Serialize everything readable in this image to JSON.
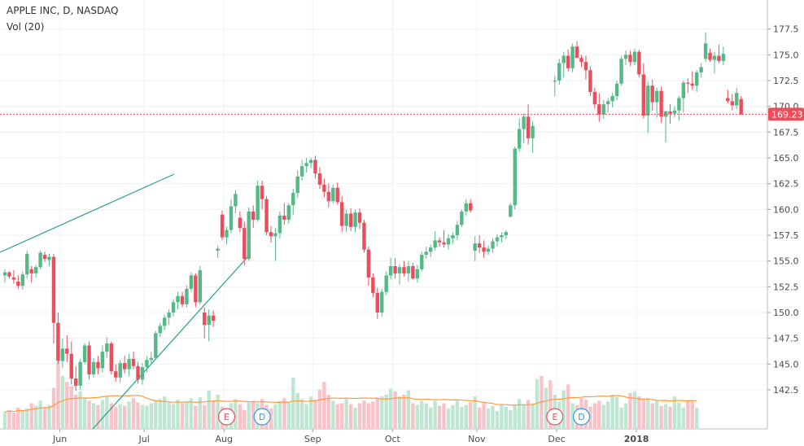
{
  "header": {
    "symbol_line": "APPLE INC, D, NASDAQ",
    "volume_line": "Vol (20)"
  },
  "colors": {
    "up": "#53b987",
    "down": "#eb4d5c",
    "up_volume": "#bfe6d2",
    "down_volume": "#f8c3c8",
    "volume_ma": "#ff9a3c",
    "trendline": "#22a08a",
    "price_line": "#eb4d5c",
    "grid": "#eef0f3",
    "axis_text": "#4a4a4a"
  },
  "chart_data": {
    "type": "candlestick",
    "title": "APPLE INC, D, NASDAQ",
    "ylim": [
      141.0,
      178.5
    ],
    "y_ticks": [
      "142.5",
      "145.0",
      "147.5",
      "150.0",
      "152.5",
      "155.0",
      "157.5",
      "160.0",
      "162.5",
      "165.0",
      "167.5",
      "170.0",
      "172.5",
      "175.0",
      "177.5"
    ],
    "x_ticks": [
      "Jun",
      "Jul",
      "Aug",
      "Sep",
      "Oct",
      "Nov",
      "Dec",
      "2018"
    ],
    "x_tick_index": [
      8,
      27,
      45,
      65,
      83,
      102,
      120,
      138
    ],
    "last_price": "169.23",
    "grid": true,
    "ohlc": [
      [
        153.6,
        154.2,
        152.9,
        153.9
      ],
      [
        153.9,
        154.0,
        153.3,
        153.5
      ],
      [
        153.4,
        154.1,
        152.8,
        153.2
      ],
      [
        153.0,
        153.6,
        152.3,
        152.6
      ],
      [
        152.6,
        154.0,
        152.2,
        153.7
      ],
      [
        153.7,
        156.0,
        153.3,
        155.7
      ],
      [
        154.2,
        154.5,
        152.9,
        153.8
      ],
      [
        153.8,
        154.6,
        153.4,
        154.4
      ],
      [
        154.4,
        156.0,
        154.2,
        155.8
      ],
      [
        155.6,
        155.9,
        154.9,
        155.2
      ],
      [
        155.1,
        155.7,
        154.5,
        155.4
      ],
      [
        155.4,
        155.7,
        147.0,
        149.0
      ],
      [
        149.0,
        150.0,
        145.0,
        145.3
      ],
      [
        145.3,
        147.5,
        144.6,
        146.5
      ],
      [
        146.5,
        147.8,
        145.2,
        146.0
      ],
      [
        146.0,
        147.2,
        143.0,
        143.6
      ],
      [
        143.6,
        144.8,
        142.4,
        142.9
      ],
      [
        142.9,
        145.5,
        142.5,
        145.2
      ],
      [
        145.2,
        147.0,
        145.0,
        146.8
      ],
      [
        146.8,
        147.2,
        143.5,
        144.0
      ],
      [
        144.0,
        145.6,
        143.7,
        145.2
      ],
      [
        145.2,
        145.8,
        144.0,
        144.6
      ],
      [
        144.6,
        146.8,
        144.2,
        146.2
      ],
      [
        146.2,
        147.6,
        145.6,
        147.0
      ],
      [
        147.0,
        147.2,
        144.0,
        144.3
      ],
      [
        144.3,
        145.0,
        143.3,
        143.7
      ],
      [
        143.7,
        145.4,
        143.2,
        145.1
      ],
      [
        145.1,
        145.8,
        144.1,
        144.5
      ],
      [
        144.5,
        146.0,
        143.8,
        145.5
      ],
      [
        145.5,
        146.2,
        144.5,
        144.8
      ],
      [
        144.8,
        145.2,
        143.1,
        143.5
      ],
      [
        143.5,
        145.1,
        143.0,
        144.7
      ],
      [
        144.7,
        145.8,
        144.2,
        145.4
      ],
      [
        145.4,
        146.2,
        145.0,
        145.6
      ],
      [
        145.6,
        148.2,
        145.5,
        148.0
      ],
      [
        148.0,
        149.0,
        147.6,
        148.7
      ],
      [
        148.7,
        149.8,
        148.3,
        149.5
      ],
      [
        149.5,
        150.3,
        148.8,
        150.0
      ],
      [
        150.0,
        151.3,
        149.6,
        151.0
      ],
      [
        151.0,
        152.0,
        150.3,
        151.6
      ],
      [
        151.6,
        152.0,
        150.5,
        150.8
      ],
      [
        150.8,
        152.6,
        150.5,
        152.3
      ],
      [
        152.3,
        153.9,
        152.0,
        153.6
      ],
      [
        153.6,
        153.8,
        150.5,
        151.0
      ],
      [
        151.0,
        154.5,
        150.8,
        154.1
      ],
      [
        150.0,
        150.5,
        147.5,
        148.8
      ],
      [
        148.8,
        150.3,
        147.2,
        149.7
      ],
      [
        149.7,
        150.2,
        148.6,
        149.2
      ],
      [
        156.0,
        156.5,
        155.3,
        156.2
      ],
      [
        159.5,
        159.9,
        157.0,
        157.3
      ],
      [
        157.3,
        158.3,
        156.6,
        158.0
      ],
      [
        158.0,
        161.0,
        157.7,
        160.3
      ],
      [
        160.3,
        161.9,
        159.6,
        161.5
      ],
      [
        159.2,
        159.8,
        157.8,
        158.2
      ],
      [
        158.2,
        158.8,
        154.6,
        155.2
      ],
      [
        155.2,
        160.2,
        155.0,
        159.8
      ],
      [
        159.8,
        160.4,
        158.2,
        159.0
      ],
      [
        159.0,
        162.8,
        158.8,
        162.3
      ],
      [
        162.3,
        162.8,
        160.0,
        161.0
      ],
      [
        161.0,
        161.3,
        157.5,
        157.8
      ],
      [
        157.8,
        158.4,
        156.8,
        157.4
      ],
      [
        157.4,
        158.2,
        155.0,
        157.7
      ],
      [
        157.7,
        159.8,
        157.2,
        159.4
      ],
      [
        159.4,
        160.6,
        158.5,
        159.0
      ],
      [
        159.0,
        160.6,
        158.6,
        160.4
      ],
      [
        160.4,
        162.0,
        159.5,
        161.6
      ],
      [
        161.6,
        163.8,
        161.1,
        163.2
      ],
      [
        163.2,
        164.8,
        162.8,
        164.2
      ],
      [
        164.2,
        165.0,
        163.6,
        164.5
      ],
      [
        164.5,
        165.0,
        164.0,
        164.8
      ],
      [
        164.8,
        165.2,
        163.0,
        163.5
      ],
      [
        163.5,
        164.1,
        162.0,
        162.4
      ],
      [
        162.4,
        163.0,
        161.2,
        161.7
      ],
      [
        161.7,
        162.5,
        160.2,
        160.8
      ],
      [
        160.8,
        162.4,
        160.6,
        162.1
      ],
      [
        162.1,
        162.6,
        160.5,
        160.7
      ],
      [
        160.7,
        161.3,
        157.8,
        158.4
      ],
      [
        158.4,
        160.0,
        157.8,
        159.6
      ],
      [
        159.6,
        160.1,
        157.9,
        158.3
      ],
      [
        158.3,
        160.0,
        157.8,
        159.7
      ],
      [
        159.7,
        160.1,
        158.1,
        158.7
      ],
      [
        158.7,
        159.0,
        155.8,
        156.1
      ],
      [
        156.1,
        156.4,
        152.6,
        153.4
      ],
      [
        153.4,
        153.8,
        151.5,
        151.9
      ],
      [
        151.9,
        152.4,
        149.4,
        150.0
      ],
      [
        150.0,
        152.3,
        149.6,
        152.0
      ],
      [
        152.0,
        154.0,
        151.7,
        153.6
      ],
      [
        153.6,
        155.3,
        153.2,
        154.5
      ],
      [
        154.5,
        155.3,
        153.3,
        153.8
      ],
      [
        153.8,
        154.7,
        152.7,
        154.4
      ],
      [
        154.4,
        155.0,
        153.5,
        153.8
      ],
      [
        153.8,
        155.0,
        153.0,
        154.5
      ],
      [
        154.5,
        154.8,
        153.2,
        153.3
      ],
      [
        153.3,
        154.6,
        152.9,
        154.2
      ],
      [
        154.2,
        155.9,
        154.0,
        155.6
      ],
      [
        155.6,
        156.4,
        155.2,
        155.9
      ],
      [
        155.9,
        156.6,
        155.4,
        156.3
      ],
      [
        156.3,
        157.9,
        156.0,
        157.0
      ],
      [
        157.0,
        157.3,
        156.4,
        156.8
      ],
      [
        156.8,
        158.0,
        156.3,
        156.6
      ],
      [
        156.6,
        157.6,
        156.1,
        157.2
      ],
      [
        157.2,
        157.8,
        156.7,
        157.5
      ],
      [
        157.5,
        158.9,
        157.0,
        158.5
      ],
      [
        158.5,
        160.0,
        158.3,
        159.8
      ],
      [
        159.8,
        161.0,
        159.4,
        160.6
      ],
      [
        160.6,
        161.0,
        159.7,
        159.9
      ],
      [
        156.0,
        157.4,
        155.0,
        156.7
      ],
      [
        156.7,
        157.5,
        155.8,
        156.3
      ],
      [
        156.3,
        157.0,
        155.3,
        155.9
      ],
      [
        155.9,
        156.5,
        155.6,
        156.2
      ],
      [
        156.2,
        157.2,
        155.8,
        156.9
      ],
      [
        156.9,
        157.6,
        156.4,
        157.3
      ],
      [
        157.3,
        157.8,
        156.8,
        157.5
      ],
      [
        157.5,
        158.0,
        157.1,
        157.8
      ],
      [
        159.3,
        160.6,
        159.2,
        160.4
      ],
      [
        160.4,
        166.1,
        160.0,
        165.9
      ],
      [
        165.9,
        168.8,
        165.6,
        167.8
      ],
      [
        167.8,
        169.3,
        166.4,
        169.0
      ],
      [
        169.0,
        170.2,
        166.3,
        166.9
      ],
      [
        166.9,
        168.5,
        165.5,
        168.1
      ]
    ]
  },
  "ohlc_right": [
    [
      172.4,
      173.0,
      171.0,
      172.5
    ],
    [
      172.5,
      174.6,
      172.1,
      174.2
    ],
    [
      174.2,
      175.3,
      172.8,
      174.9
    ],
    [
      174.9,
      175.5,
      173.4,
      173.7
    ],
    [
      173.7,
      176.1,
      173.3,
      175.8
    ],
    [
      175.8,
      176.3,
      174.7,
      174.7
    ],
    [
      174.7,
      175.0,
      173.8,
      174.3
    ],
    [
      174.3,
      174.9,
      172.6,
      173.5
    ],
    [
      173.5,
      173.9,
      171.0,
      171.4
    ],
    [
      171.4,
      171.8,
      169.8,
      170.2
    ],
    [
      170.2,
      171.3,
      168.5,
      169.2
    ],
    [
      169.2,
      170.6,
      168.8,
      170.2
    ],
    [
      170.2,
      170.8,
      169.4,
      170.5
    ],
    [
      170.5,
      171.3,
      169.9,
      171.0
    ],
    [
      171.0,
      172.5,
      170.6,
      172.2
    ],
    [
      172.2,
      174.9,
      172.0,
      174.6
    ],
    [
      174.6,
      175.4,
      174.0,
      175.0
    ],
    [
      175.0,
      175.4,
      173.9,
      174.3
    ],
    [
      174.3,
      175.6,
      174.0,
      175.3
    ],
    [
      175.3,
      175.5,
      172.8,
      173.1
    ],
    [
      173.1,
      174.2,
      168.8,
      169.1
    ],
    [
      169.1,
      172.4,
      167.4,
      172.0
    ],
    [
      172.0,
      172.6,
      169.6,
      170.4
    ],
    [
      170.4,
      171.8,
      168.9,
      171.5
    ],
    [
      171.5,
      171.9,
      168.4,
      169.0
    ],
    [
      169.0,
      169.6,
      166.5,
      169.5
    ],
    [
      169.5,
      170.2,
      168.3,
      169.3
    ],
    [
      169.3,
      170.0,
      168.9,
      169.6
    ],
    [
      169.6,
      171.0,
      168.6,
      170.8
    ],
    [
      170.8,
      172.5,
      169.4,
      172.3
    ],
    [
      172.3,
      172.7,
      171.3,
      172.2
    ],
    [
      172.2,
      173.4,
      171.6,
      172.0
    ],
    [
      172.0,
      173.5,
      171.4,
      173.3
    ],
    [
      173.3,
      174.2,
      172.8,
      173.8
    ],
    [
      174.6,
      177.2,
      174.3,
      176.1
    ],
    [
      175.2,
      175.6,
      174.3,
      174.5
    ],
    [
      174.5,
      175.3,
      173.2,
      174.9
    ],
    [
      174.9,
      176.0,
      174.2,
      174.4
    ],
    [
      174.4,
      175.8,
      174.0,
      175.1
    ],
    [
      170.8,
      171.6,
      170.3,
      170.5
    ],
    [
      170.5,
      171.2,
      169.6,
      170.1
    ],
    [
      170.1,
      171.8,
      169.7,
      171.3
    ],
    [
      170.7,
      171.0,
      169.3,
      169.2
    ]
  ],
  "volume": {
    "top_value": 150.0,
    "values": [
      20,
      22,
      19,
      25,
      21,
      24,
      30,
      27,
      33,
      26,
      28,
      48,
      78,
      62,
      55,
      50,
      40,
      44,
      36,
      33,
      30,
      28,
      34,
      38,
      30,
      26,
      29,
      27,
      32,
      36,
      31,
      28,
      27,
      30,
      33,
      35,
      38,
      31,
      29,
      34,
      30,
      32,
      36,
      27,
      37,
      28,
      45,
      33,
      40,
      26,
      24,
      30,
      35,
      29,
      22,
      31,
      33,
      30,
      35,
      28,
      24,
      29,
      33,
      36,
      31,
      60,
      42,
      35,
      29,
      38,
      34,
      46,
      55,
      40,
      33,
      29,
      30,
      35,
      29,
      25,
      30,
      33,
      30,
      32,
      36,
      38,
      40,
      47,
      44,
      38,
      40,
      45,
      30,
      28,
      33,
      30,
      25,
      33,
      27,
      30,
      24,
      28,
      33,
      26,
      28,
      31,
      38,
      25,
      30,
      24,
      27,
      21,
      29,
      26,
      22,
      28,
      35,
      29,
      34,
      30,
      58,
      62,
      48,
      57,
      40,
      32,
      45,
      52,
      30,
      28,
      36,
      34,
      26,
      30,
      33,
      28,
      32,
      40,
      37,
      25,
      30,
      42,
      44,
      38,
      35,
      36,
      30,
      34,
      27,
      29,
      26,
      38,
      31,
      25,
      33,
      32,
      25
    ]
  },
  "markers": [
    {
      "kind": "earnings",
      "label": "E"
    },
    {
      "kind": "dividend",
      "label": "D"
    },
    {
      "kind": "earnings",
      "label": "E"
    },
    {
      "kind": "dividend",
      "label": "D"
    }
  ]
}
